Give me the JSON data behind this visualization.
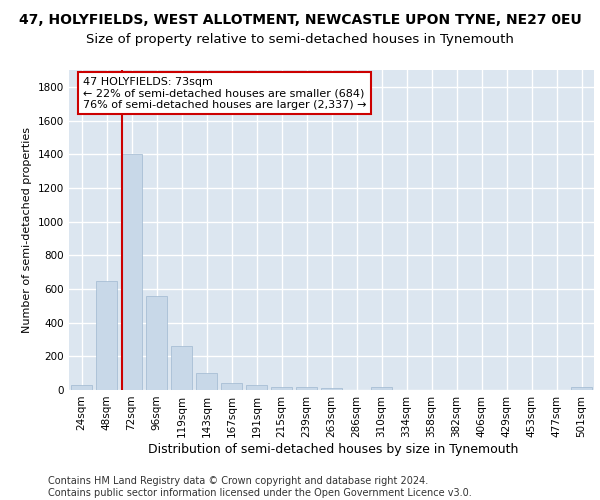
{
  "title1": "47, HOLYFIELDS, WEST ALLOTMENT, NEWCASTLE UPON TYNE, NE27 0EU",
  "title2": "Size of property relative to semi-detached houses in Tynemouth",
  "xlabel": "Distribution of semi-detached houses by size in Tynemouth",
  "ylabel": "Number of semi-detached properties",
  "footer": "Contains HM Land Registry data © Crown copyright and database right 2024.\nContains public sector information licensed under the Open Government Licence v3.0.",
  "categories": [
    "24sqm",
    "48sqm",
    "72sqm",
    "96sqm",
    "119sqm",
    "143sqm",
    "167sqm",
    "191sqm",
    "215sqm",
    "239sqm",
    "263sqm",
    "286sqm",
    "310sqm",
    "334sqm",
    "358sqm",
    "382sqm",
    "406sqm",
    "429sqm",
    "453sqm",
    "477sqm",
    "501sqm"
  ],
  "values": [
    30,
    650,
    1400,
    560,
    260,
    100,
    40,
    30,
    20,
    20,
    10,
    0,
    20,
    0,
    0,
    0,
    0,
    0,
    0,
    0,
    20
  ],
  "bar_color": "#c8d8e8",
  "bar_edge_color": "#a0b8d0",
  "vline_index": 1.6,
  "annotation_text": "47 HOLYFIELDS: 73sqm\n← 22% of semi-detached houses are smaller (684)\n76% of semi-detached houses are larger (2,337) →",
  "annotation_box_color": "#ffffff",
  "annotation_box_edge_color": "#cc0000",
  "vline_color": "#cc0000",
  "ylim": [
    0,
    1900
  ],
  "background_color": "#dce6f0",
  "grid_color": "#ffffff",
  "title1_fontsize": 10,
  "title2_fontsize": 9.5,
  "xlabel_fontsize": 9,
  "ylabel_fontsize": 8,
  "tick_fontsize": 7.5,
  "annotation_fontsize": 8,
  "footer_fontsize": 7
}
